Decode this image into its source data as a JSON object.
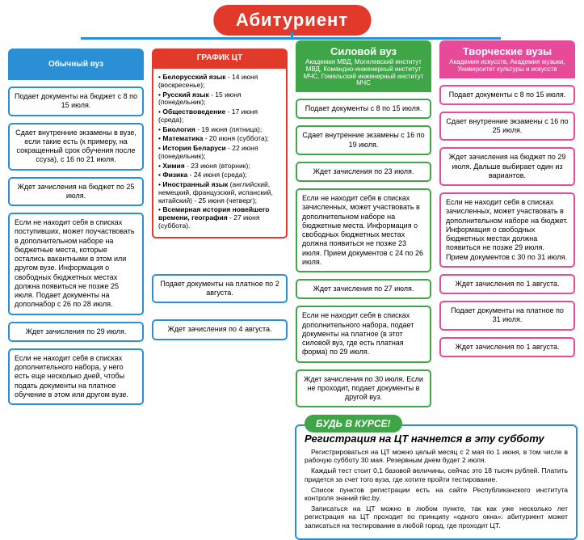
{
  "title": "Абитуриент",
  "colors": {
    "blue": "#2b8fd6",
    "red": "#e23a2a",
    "green": "#3fa648",
    "pink": "#e84a9a"
  },
  "columns": {
    "regular": {
      "header": "Обычный вуз",
      "boxes": [
        "Подает документы на бюджет с 8 по 15 июля.",
        "Сдает внутренние экзамены в вузе, если такие есть (к примеру, на сокращенный срок обучения после ссуза), с 16 по 21 июля.",
        "Ждет зачисления на бюджет по 25 июля.",
        "Если не находит себя в списках поступивших, может поучаствовать в дополнительном наборе на бюджетные места, которые остались вакантными в этом или другом вузе. Информация о свободных бюджетных местах должна появиться не позже 25 июля. Подает документы на дополнабор с 26 по 28 июля.",
        "Ждет зачисления по 29 июля.",
        "Если не находит себя в списках дополнительного набора, у него есть еще несколько дней, чтобы подать документы на платное обучение в этом или другом вузе."
      ]
    },
    "schedule": {
      "header": "ГРАФИК ЦТ",
      "items": [
        {
          "subj": "Белорусский язык",
          "rest": " - 14 июня (воскресенье);"
        },
        {
          "subj": "Русский язык",
          "rest": " - 15 июня (понедельник);"
        },
        {
          "subj": "Обществоведение",
          "rest": " - 17 июня (среда);"
        },
        {
          "subj": "Биология",
          "rest": " - 19 июня (пятница);"
        },
        {
          "subj": "Математика",
          "rest": " - 20 июня (суббота);"
        },
        {
          "subj": "История Беларуси",
          "rest": " - 22 июня (понедельник);"
        },
        {
          "subj": "Химия",
          "rest": " - 23 июня (вторник);"
        },
        {
          "subj": "Физика",
          "rest": " - 24 июня (среда);"
        },
        {
          "subj": "Иностранный язык",
          "rest": " (английский, немецкий, французский, испанский, китайский) - 25 июня (четверг);"
        },
        {
          "subj": "Всемирная история новейшего времени, география",
          "rest": " - 27 июня (суббота)."
        }
      ],
      "tail1": "Подает документы на платное по 2 августа.",
      "tail2": "Ждет зачисления по 4 августа."
    },
    "military": {
      "header": "Силовой вуз",
      "sub": "Академия МВД, Могилевский институт МВД, Командно-инженерный институт МЧС, Гомельский инженерный институт МЧС",
      "boxes": [
        "Подает документы с 8 по 15 июля.",
        "Сдает внутренние экзамены с 16 по 19 июля.",
        "Ждет зачисления по 23 июля.",
        "Если не находит себя в списках зачисленных, может участвовать в дополнительном наборе на бюджетные места. Информация о свободных бюджетных местах должна появиться не позже 23 июля. Прием документов с 24 по 26 июля.",
        "Ждет зачисления по 27 июля.",
        "Если не находит себя в списках дополнительного набора, подает документы на платное (в этот силовой вуз, где есть платная форма) по 29 июля.",
        "Ждет зачисления по 30 июля. Если не проходит, подает документы в другой вуз."
      ]
    },
    "creative": {
      "header": "Творческие вузы",
      "sub": "Академия искусств, Академия музыки, Университет культуры и искусств",
      "boxes": [
        "Подает документы с 8 по 15 июля.",
        "Сдает внутренние экзамены с 16 по 25 июля.",
        "Ждет зачисления на бюджет по 29 июля. Дальше выбирает один из вариантов.",
        "Если не находит себя в списках зачисленных, может участвовать в дополнительном наборе на бюджет. Информация о свободных бюджетных местах должна появиться не позже 29 июля. Прием документов с 30 по 31 июля.",
        "Ждет зачисления по 1 августа.",
        "Подает документы на платное по 31 июля.",
        "Ждет зачисления по 1 августа."
      ]
    }
  },
  "info": {
    "pill": "БУДЬ В КУРСЕ!",
    "title": "Регистрация на ЦТ начнется в эту субботу",
    "body": [
      "Регистрироваться на ЦТ можно целый месяц с 2 мая по 1 июня, в том числе в рабочую субботу 30 мая. Резервным днем будет 2 июля.",
      "Каждый тест стоит 0,1 базовой величины, сейчас это 18 тысяч рублей. Платить придется за счет того вуза, где хотите пройти тестирование.",
      "Список пунктов регистрации есть на сайте Республиканского института контроля знаний rikc.by.",
      "Записаться на ЦТ можно в любом пункте, так как уже несколько лет регистрация на ЦТ проходит по принципу «одного окна»: абитуриент может записаться на тестирование в любой город, где проходит ЦТ."
    ]
  }
}
